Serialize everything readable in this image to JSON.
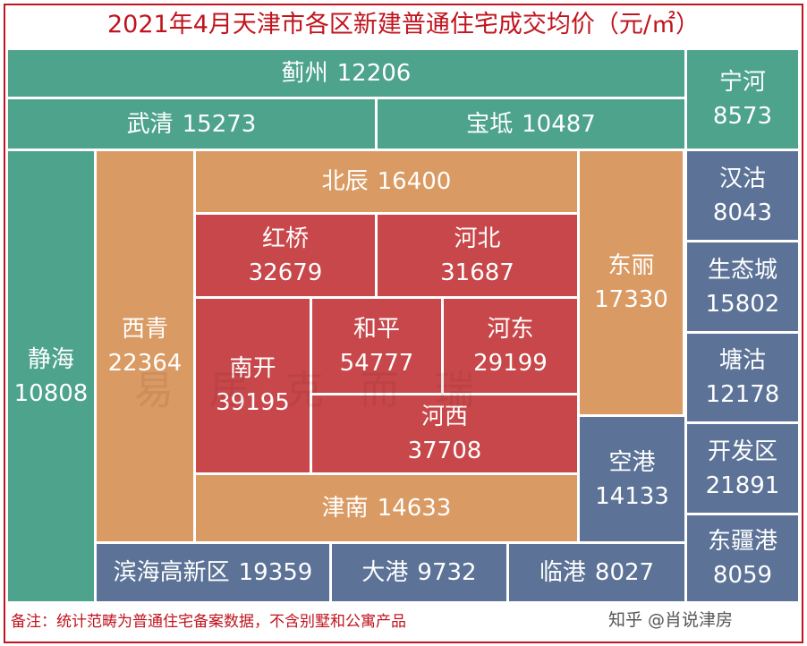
{
  "title": "2021年4月天津市各区新建普通住宅成交均价（元/㎡）",
  "colors": {
    "teal": "#4da38c",
    "tan": "#da9a63",
    "red": "#c8474a",
    "slate": "#5c7397",
    "frame": "#c0141e"
  },
  "districts": [
    {
      "id": "jizhou",
      "name": "蓟州",
      "value": "12206",
      "color": "teal"
    },
    {
      "id": "ninghe",
      "name": "宁河",
      "value": "8573",
      "color": "teal"
    },
    {
      "id": "wuqing",
      "name": "武清",
      "value": "15273",
      "color": "teal"
    },
    {
      "id": "baodi",
      "name": "宝坻",
      "value": "10487",
      "color": "teal"
    },
    {
      "id": "jinghai",
      "name": "静海",
      "value": "10808",
      "color": "teal"
    },
    {
      "id": "xiqing",
      "name": "西青",
      "value": "22364",
      "color": "tan"
    },
    {
      "id": "beichen",
      "name": "北辰",
      "value": "16400",
      "color": "tan"
    },
    {
      "id": "dongli",
      "name": "东丽",
      "value": "17330",
      "color": "tan"
    },
    {
      "id": "jinnan",
      "name": "津南",
      "value": "14633",
      "color": "tan"
    },
    {
      "id": "hongqiao",
      "name": "红桥",
      "value": "32679",
      "color": "red"
    },
    {
      "id": "hebei",
      "name": "河北",
      "value": "31687",
      "color": "red"
    },
    {
      "id": "nankai",
      "name": "南开",
      "value": "39195",
      "color": "red"
    },
    {
      "id": "heping",
      "name": "和平",
      "value": "54777",
      "color": "red"
    },
    {
      "id": "hedong",
      "name": "河东",
      "value": "29199",
      "color": "red"
    },
    {
      "id": "hexi",
      "name": "河西",
      "value": "37708",
      "color": "red"
    },
    {
      "id": "hangu",
      "name": "汉沽",
      "value": "8043",
      "color": "slate"
    },
    {
      "id": "shengtaicheng",
      "name": "生态城",
      "value": "15802",
      "color": "slate"
    },
    {
      "id": "tanggu",
      "name": "塘沽",
      "value": "12178",
      "color": "slate"
    },
    {
      "id": "kaifaqu",
      "name": "开发区",
      "value": "21891",
      "color": "slate"
    },
    {
      "id": "konggang",
      "name": "空港",
      "value": "14133",
      "color": "slate"
    },
    {
      "id": "dongjianggang",
      "name": "东疆港",
      "value": "8059",
      "color": "slate"
    },
    {
      "id": "binhaigaoxin",
      "name": "滨海高新区",
      "value": "19359",
      "color": "slate"
    },
    {
      "id": "dagang",
      "name": "大港",
      "value": "9732",
      "color": "slate"
    },
    {
      "id": "lingang",
      "name": "临港",
      "value": "8027",
      "color": "slate"
    }
  ],
  "watermark": "易居克而瑞",
  "note": "备注：统计范畴为普通住宅备案数据，不含别墅和公寓产品",
  "source": "知乎 @肖说津房"
}
